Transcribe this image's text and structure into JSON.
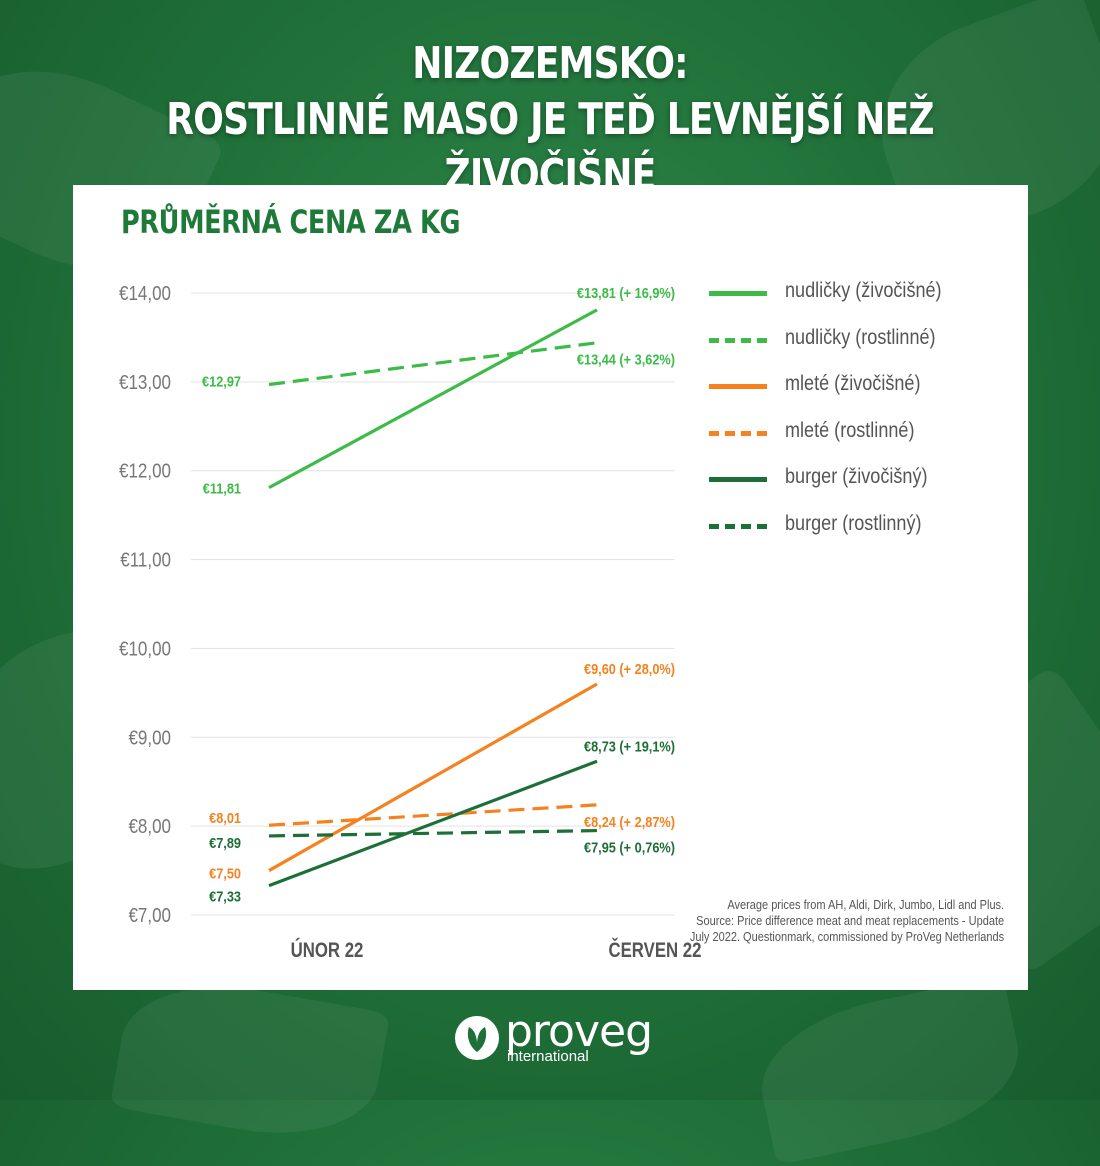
{
  "header": {
    "title_line1": "NIZOZEMSKO:",
    "title_line2": "ROSTLINNÉ MASO JE TEĎ LEVNĚJŠÍ NEŽ ŽIVOČIŠNÉ"
  },
  "chart_data": {
    "type": "line",
    "title": "PRŮMĚRNÁ CENA ZA KG",
    "categories": [
      "ÚNOR 22",
      "ČERVEN 22"
    ],
    "ylim": [
      7,
      14
    ],
    "yticks": [
      "€7,00",
      "€8,00",
      "€9,00",
      "€10,00",
      "€11,00",
      "€12,00",
      "€13,00",
      "€14,00"
    ],
    "grid": true,
    "legend_position": "right",
    "series": [
      {
        "name": "nudličky (živočišné)",
        "values": [
          11.81,
          13.81
        ],
        "color": "#3dbb48",
        "dashed": false,
        "start_label": "€11,81",
        "end_label": "€13,81 (+ 16,9%)"
      },
      {
        "name": "nudličky (rostlinné)",
        "values": [
          12.97,
          13.44
        ],
        "color": "#3dbb48",
        "dashed": true,
        "start_label": "€12,97",
        "end_label": "€13,44 (+ 3,62%)"
      },
      {
        "name": "mleté (živočišné)",
        "values": [
          7.5,
          9.6
        ],
        "color": "#f5821f",
        "dashed": false,
        "start_label": "€7,50",
        "end_label": "€9,60 (+ 28,0%)"
      },
      {
        "name": "mleté (rostlinné)",
        "values": [
          8.01,
          8.24
        ],
        "color": "#f5821f",
        "dashed": true,
        "start_label": "€8,01",
        "end_label": "€8,24 (+ 2,87%)"
      },
      {
        "name": "burger (živočišný)",
        "values": [
          7.33,
          8.73
        ],
        "color": "#1d6f37",
        "dashed": false,
        "start_label": "€7,33",
        "end_label": "€8,73 (+ 19,1%)"
      },
      {
        "name": "burger (rostlinný)",
        "values": [
          7.89,
          7.95
        ],
        "color": "#1d6f37",
        "dashed": true,
        "start_label": "€7,89",
        "end_label": "€7,95 (+ 0,76%)"
      }
    ]
  },
  "source": {
    "line1": "Average prices from AH, Aldi, Dirk, Jumbo,  Lidl and Plus.",
    "line2": "Source: Price difference meat and meat replacements - Update",
    "line3": "July 2022. Questionmark, commissioned by ProVeg Netherlands"
  },
  "logo": {
    "name": "proveg",
    "sub": "international"
  },
  "colors": {
    "background": "#1f6f38",
    "title_green": "#1f7a3a"
  }
}
